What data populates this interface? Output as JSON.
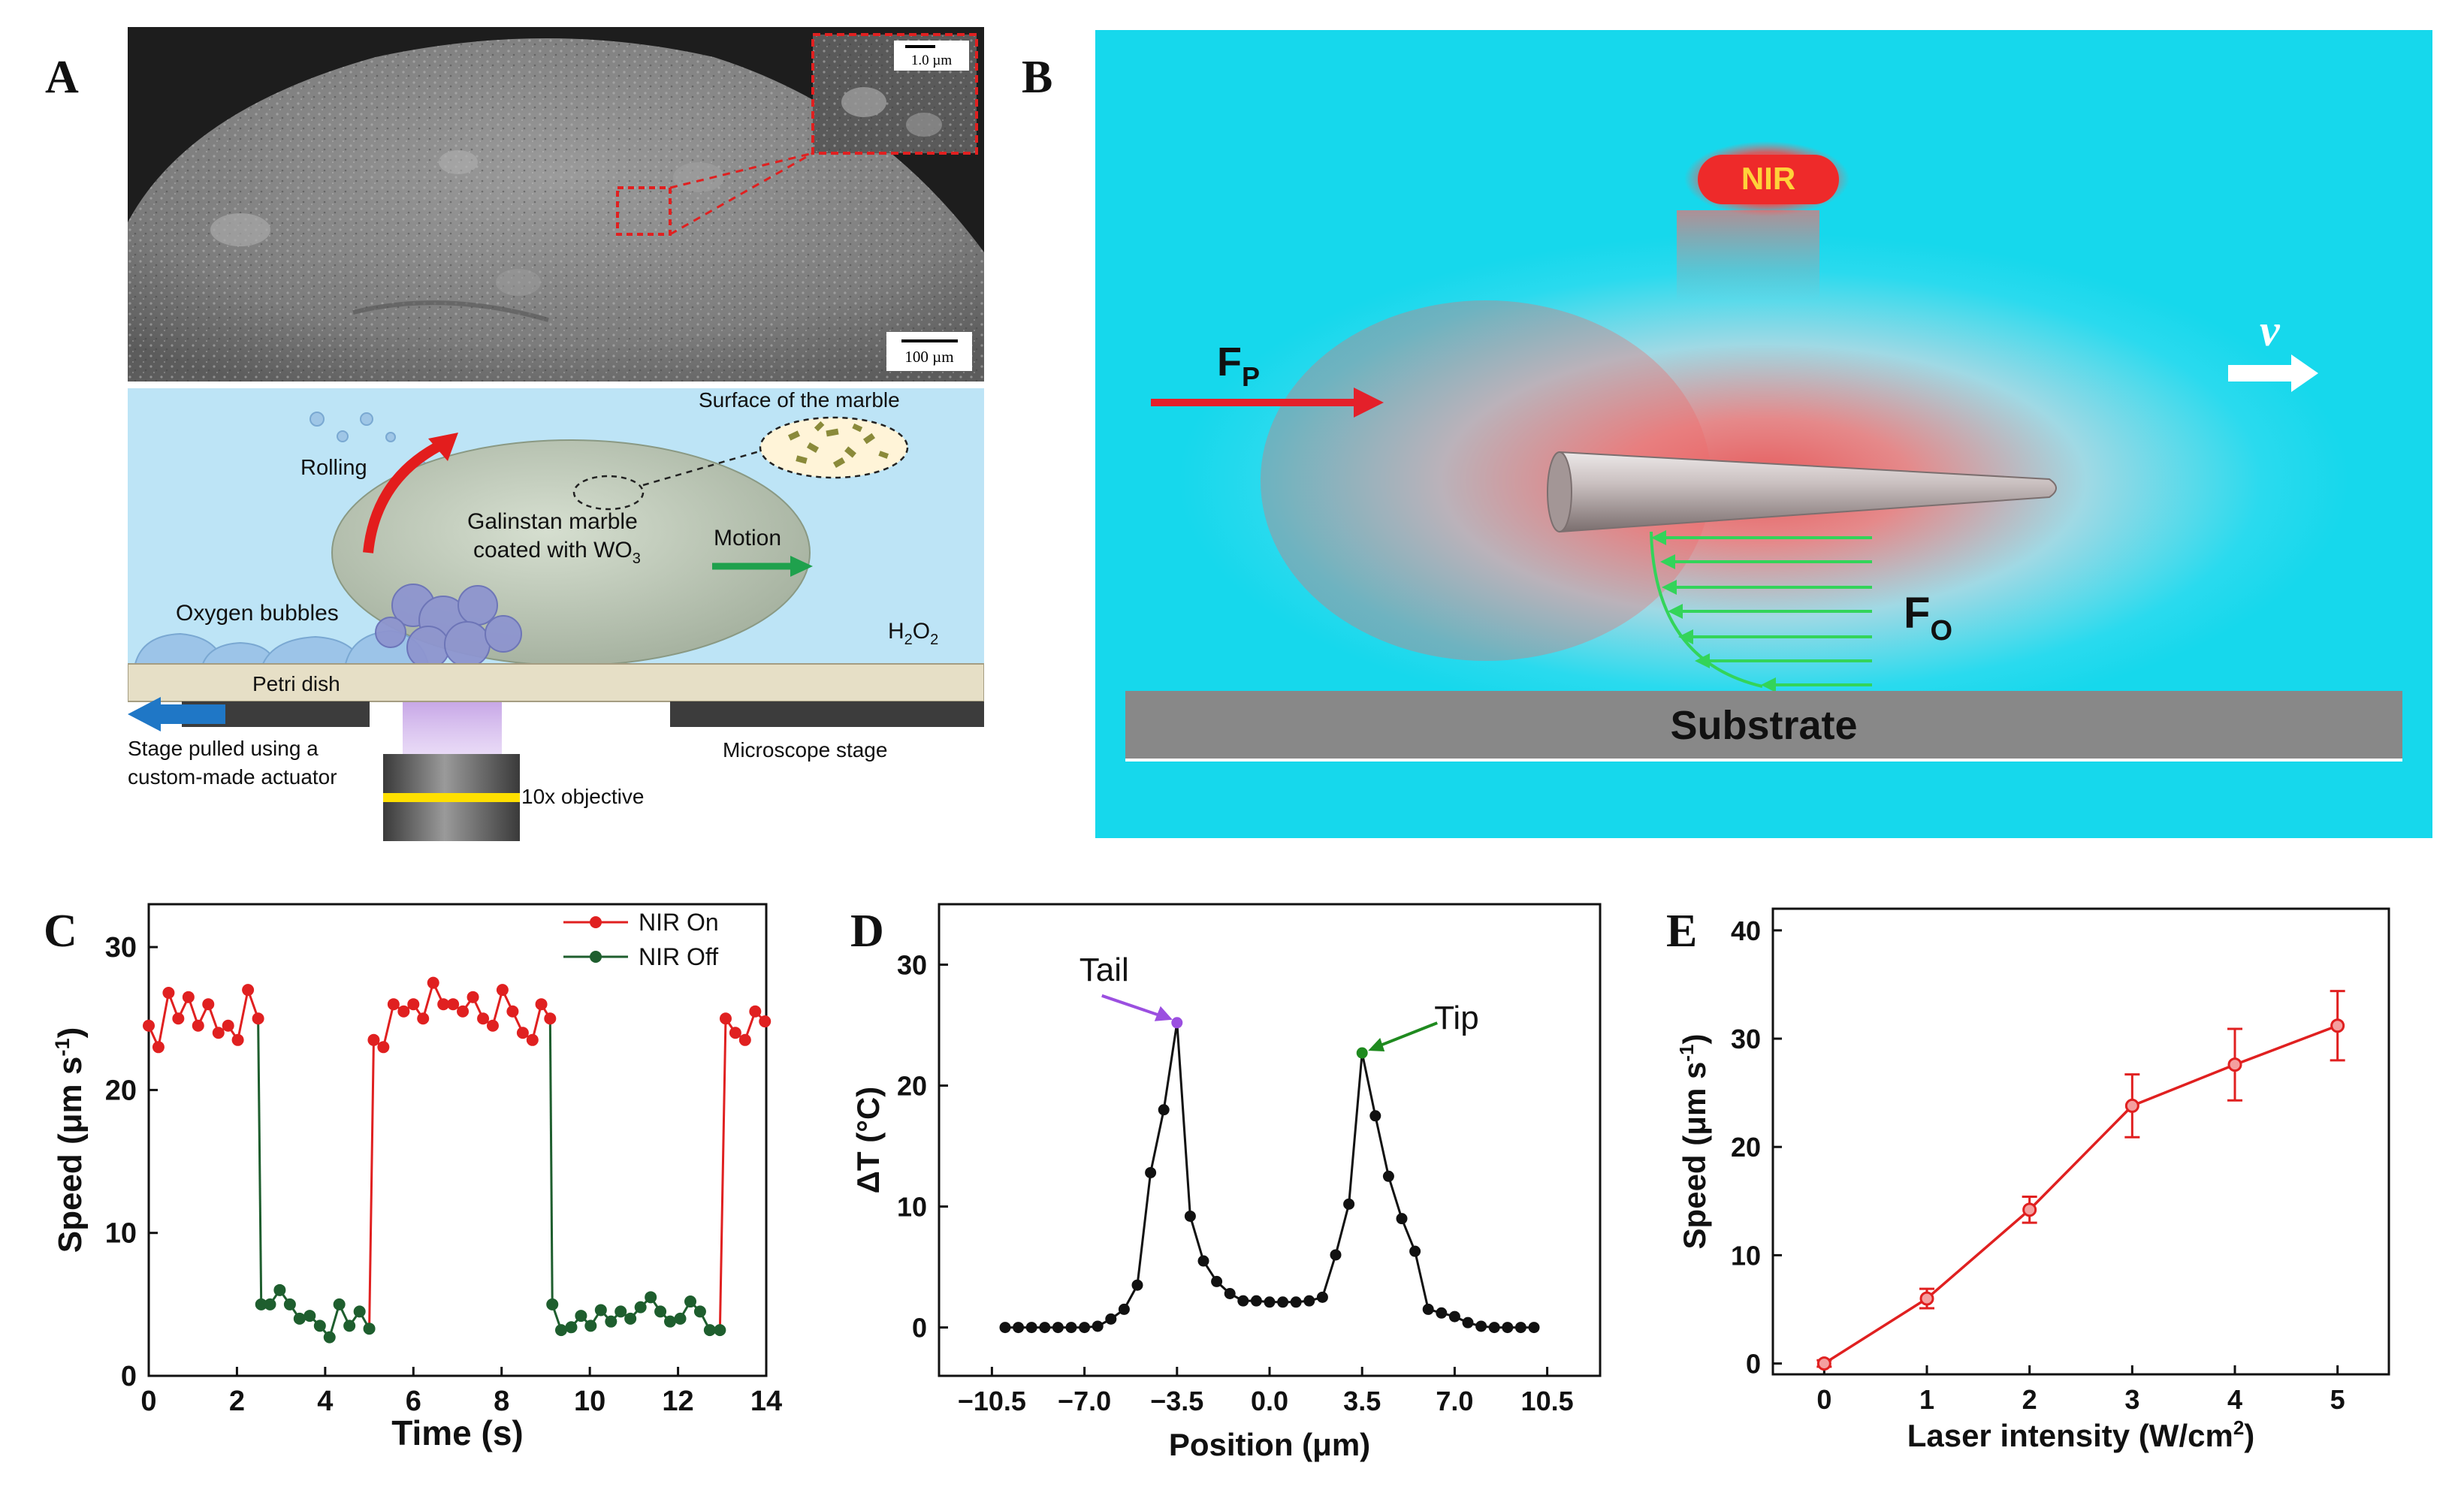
{
  "panel_labels": {
    "a": "A",
    "b": "B",
    "c": "C",
    "d": "D",
    "e": "E"
  },
  "panel_a": {
    "scale_inset": "1.0 µm",
    "scale_main": "100 µm",
    "rolling": "Rolling",
    "surface": "Surface of the marble",
    "marble_line1": "Galinstan marble",
    "marble_line2": "coated with WO",
    "marble_sub": "3",
    "motion": "Motion",
    "bubbles": "Oxygen bubbles",
    "h2o2_main": "H",
    "h2o2_s1": "2",
    "h2o2_mid": "O",
    "h2o2_s2": "2",
    "petri": "Petri dish",
    "stage_line1": "Stage pulled using a",
    "stage_line2": "custom-made actuator",
    "microscope_stage": "Microscope stage",
    "objective": "10x objective"
  },
  "panel_b": {
    "nir": "NIR",
    "fp_main": "F",
    "fp_sub": "P",
    "fo_main": "F",
    "fo_sub": "O",
    "velocity": "v",
    "substrate": "Substrate",
    "colors": {
      "bg": "#16d8ec",
      "hot": "#f06a6a",
      "arrow_red": "#e4202a",
      "arrow_green": "#33d45a",
      "substrate": "#888888"
    }
  },
  "chart_data": [
    {
      "id": "C",
      "type": "line",
      "xlabel": "Time (s)",
      "ylabel_main": "Speed (μm s",
      "ylabel_sup": "-1",
      "ylabel_end": ")",
      "xlim": [
        0,
        14
      ],
      "ylim": [
        0,
        33
      ],
      "xticks": [
        0,
        2,
        4,
        6,
        8,
        10,
        12,
        14
      ],
      "yticks": [
        0,
        10,
        20,
        30
      ],
      "legend": [
        "NIR On",
        "NIR Off"
      ],
      "legend_position": "top-right",
      "series": [
        {
          "name": "NIR On",
          "color": "#e02020",
          "segments": [
            [
              [
                0,
                24.5
              ],
              [
                0.22,
                23
              ],
              [
                0.45,
                26.8
              ],
              [
                0.67,
                25
              ],
              [
                0.9,
                26.5
              ],
              [
                1.12,
                24.5
              ],
              [
                1.35,
                26
              ],
              [
                1.58,
                24
              ],
              [
                1.8,
                24.5
              ],
              [
                2.02,
                23.5
              ],
              [
                2.25,
                27
              ],
              [
                2.48,
                25
              ]
            ],
            [
              [
                5.1,
                23.5
              ],
              [
                5.32,
                23
              ],
              [
                5.55,
                26
              ],
              [
                5.78,
                25.5
              ],
              [
                6.0,
                26
              ],
              [
                6.22,
                25
              ],
              [
                6.45,
                27.5
              ],
              [
                6.68,
                26
              ],
              [
                6.9,
                26
              ],
              [
                7.12,
                25.5
              ],
              [
                7.35,
                26.5
              ],
              [
                7.58,
                25
              ],
              [
                7.8,
                24.5
              ],
              [
                8.02,
                27
              ],
              [
                8.25,
                25.5
              ],
              [
                8.48,
                24
              ],
              [
                8.7,
                23.5
              ],
              [
                8.9,
                26
              ],
              [
                9.1,
                25
              ]
            ],
            [
              [
                13.08,
                25
              ],
              [
                13.3,
                24
              ],
              [
                13.52,
                23.5
              ],
              [
                13.75,
                25.5
              ],
              [
                13.97,
                24.8
              ]
            ]
          ]
        },
        {
          "name": "NIR Off",
          "color": "#1e5e2e",
          "segments": [
            [
              [
                2.55,
                5
              ],
              [
                2.75,
                5
              ],
              [
                2.97,
                6
              ],
              [
                3.2,
                5
              ],
              [
                3.42,
                4
              ],
              [
                3.65,
                4.2
              ],
              [
                3.88,
                3.5
              ],
              [
                4.1,
                2.7
              ],
              [
                4.32,
                5
              ],
              [
                4.55,
                3.5
              ],
              [
                4.78,
                4.5
              ],
              [
                5.0,
                3.3
              ]
            ],
            [
              [
                9.15,
                5
              ],
              [
                9.35,
                3.2
              ],
              [
                9.58,
                3.4
              ],
              [
                9.8,
                4.2
              ],
              [
                10.02,
                3.5
              ],
              [
                10.25,
                4.6
              ],
              [
                10.48,
                3.8
              ],
              [
                10.7,
                4.5
              ],
              [
                10.92,
                4
              ],
              [
                11.15,
                4.8
              ],
              [
                11.38,
                5.5
              ],
              [
                11.6,
                4.5
              ],
              [
                11.82,
                3.8
              ],
              [
                12.05,
                4
              ],
              [
                12.28,
                5.2
              ],
              [
                12.5,
                4.5
              ],
              [
                12.72,
                3.2
              ],
              [
                12.95,
                3.2
              ]
            ]
          ]
        }
      ]
    },
    {
      "id": "D",
      "type": "line",
      "xlabel": "Position (μm)",
      "ylabel": "ΔT (°C)",
      "xlim": [
        -12.5,
        12.5
      ],
      "ylim": [
        -4,
        35
      ],
      "xticks": [
        -10.5,
        -7.0,
        -3.5,
        0.0,
        3.5,
        7.0,
        10.5
      ],
      "xtick_labels": [
        "−10.5",
        "−7.0",
        "−3.5",
        "0.0",
        "3.5",
        "7.0",
        "10.5"
      ],
      "yticks": [
        0,
        10,
        20,
        30
      ],
      "annotations": [
        {
          "text": "Tail",
          "x": -3.5,
          "y": 25.2
        },
        {
          "text": "Tip",
          "x": 3.5,
          "y": 22.7
        }
      ],
      "series": [
        {
          "name": "ΔT",
          "color": "#111111",
          "points": [
            [
              -10,
              0
            ],
            [
              -9.5,
              0
            ],
            [
              -9,
              0
            ],
            [
              -8.5,
              0
            ],
            [
              -8,
              0
            ],
            [
              -7.5,
              0
            ],
            [
              -7,
              0
            ],
            [
              -6.5,
              0.1
            ],
            [
              -6,
              0.7
            ],
            [
              -5.5,
              1.5
            ],
            [
              -5,
              3.5
            ],
            [
              -4.5,
              12.8
            ],
            [
              -4,
              18
            ],
            [
              -3.5,
              25.2
            ],
            [
              -3,
              9.2
            ],
            [
              -2.5,
              5.5
            ],
            [
              -2,
              3.8
            ],
            [
              -1.5,
              2.8
            ],
            [
              -1,
              2.2
            ],
            [
              -0.5,
              2.2
            ],
            [
              0,
              2.1
            ],
            [
              0.5,
              2.1
            ],
            [
              1,
              2.1
            ],
            [
              1.5,
              2.2
            ],
            [
              2,
              2.5
            ],
            [
              2.5,
              6
            ],
            [
              3,
              10.2
            ],
            [
              3.5,
              22.7
            ],
            [
              4,
              17.5
            ],
            [
              4.5,
              12.5
            ],
            [
              5,
              9
            ],
            [
              5.5,
              6.3
            ],
            [
              6,
              1.5
            ],
            [
              6.5,
              1.2
            ],
            [
              7,
              0.9
            ],
            [
              7.5,
              0.4
            ],
            [
              8,
              0.1
            ],
            [
              8.5,
              0
            ],
            [
              9,
              0
            ],
            [
              9.5,
              0
            ],
            [
              10,
              0
            ]
          ]
        }
      ]
    },
    {
      "id": "E",
      "type": "line",
      "xlabel_main": "Laser intensity (W/cm",
      "xlabel_sup": "2",
      "xlabel_end": ")",
      "ylabel_main": "Speed (μm s",
      "ylabel_sup": "-1",
      "ylabel_end": ")",
      "xlim": [
        -0.5,
        5.5
      ],
      "ylim": [
        -1,
        42
      ],
      "xticks": [
        0,
        1,
        2,
        3,
        4,
        5
      ],
      "yticks": [
        0,
        10,
        20,
        30,
        40
      ],
      "series": [
        {
          "name": "Speed",
          "color": "#e02020",
          "x": [
            0,
            1,
            2,
            3,
            4,
            5
          ],
          "values": [
            0,
            6,
            14.2,
            23.8,
            27.6,
            31.2
          ],
          "errors": [
            0.3,
            0.9,
            1.2,
            2.9,
            3.3,
            3.2
          ]
        }
      ]
    }
  ]
}
